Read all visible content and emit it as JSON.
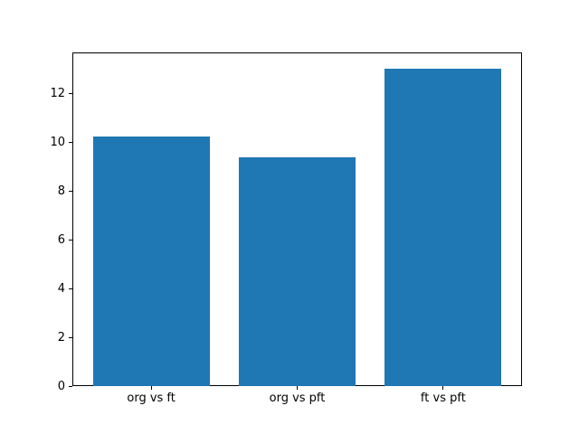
{
  "figure": {
    "background": "#ffffff",
    "frame_color": "#000000",
    "tick_color": "#000000",
    "text_color": "#000000"
  },
  "chart_data": {
    "type": "bar",
    "categories": [
      "org vs ft",
      "org vs pft",
      "ft vs pft"
    ],
    "values": [
      10.25,
      9.4,
      13.05
    ],
    "title": "",
    "xlabel": "",
    "ylabel": "",
    "bar_color": "#1f77b4",
    "bar_width": 0.8,
    "xlim": [
      -0.54,
      2.54
    ],
    "ylim": [
      0,
      13.7
    ],
    "y_ticks": [
      0,
      2,
      4,
      6,
      8,
      10,
      12
    ],
    "grid": false,
    "legend_position": "none"
  }
}
